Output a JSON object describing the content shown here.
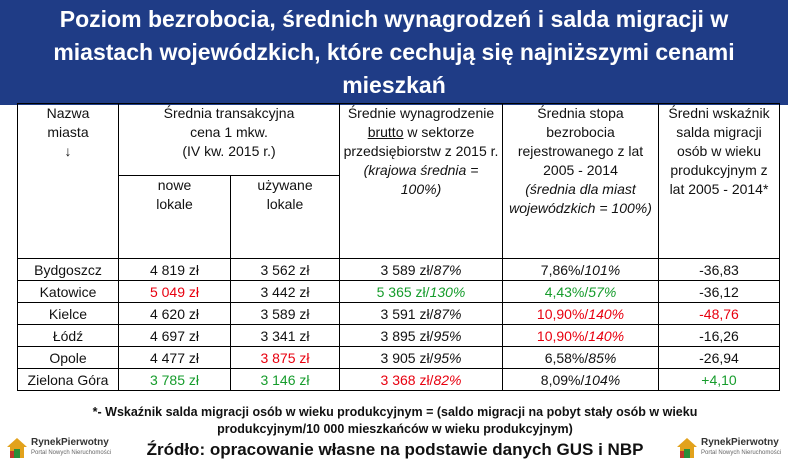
{
  "title": "Poziom bezrobocia, średnich wynagrodzeń i salda migracji w miastach wojewódzkich, które cechują się najniższymi cenami mieszkań",
  "headers": {
    "city": [
      "Nazwa",
      "miasta",
      "↓"
    ],
    "price_group": [
      "Średnia transakcyjna",
      "cena 1 mkw.",
      "(IV kw. 2015 r.)"
    ],
    "new": [
      "nowe",
      "lokale"
    ],
    "used": [
      "używane",
      "lokale"
    ],
    "wage_pre": "Średnie wynagrodzenie",
    "wage_u": "brutto",
    "wage_post": "w sektorze przedsiębiorstw z 2015 r.",
    "wage_note": "(krajowa średnia = 100%)",
    "unemp": "Średnia stopa bezrobocia rejestrowanego z lat 2005 - 2014",
    "unemp_note": "(średnia dla miast wojewódzkich = 100%)",
    "migr": "Średni wskaźnik salda migracji osób w wieku produkcyjnym z lat 2005 - 2014*"
  },
  "rows": [
    {
      "city": "Bydgoszcz",
      "new": "4 819 zł",
      "used": "3 562 zł",
      "wage": "3 589 zł/",
      "wage_pct": "87%",
      "unemp": "7,86%/",
      "unemp_pct": "101%",
      "migr": "-36,83"
    },
    {
      "city": "Katowice",
      "new": "5 049 zł",
      "used": "3 442 zł",
      "wage": "5 365 zł/",
      "wage_pct": "130%",
      "unemp": "4,43%/",
      "unemp_pct": "57%",
      "migr": "-36,12"
    },
    {
      "city": "Kielce",
      "new": "4 620 zł",
      "used": "3 589 zł",
      "wage": "3 591 zł/",
      "wage_pct": "87%",
      "unemp": "10,90%/",
      "unemp_pct": "140%",
      "migr": "-48,76"
    },
    {
      "city": "Łódź",
      "new": "4 697 zł",
      "used": "3 341 zł",
      "wage": "3 895 zł/",
      "wage_pct": "95%",
      "unemp": "10,90%/",
      "unemp_pct": "140%",
      "migr": "-16,26"
    },
    {
      "city": "Opole",
      "new": "4 477 zł",
      "used": "3 875 zł",
      "wage": "3 905 zł/",
      "wage_pct": "95%",
      "unemp": "6,58%/",
      "unemp_pct": "85%",
      "migr": "-26,94"
    },
    {
      "city": "Zielona Góra",
      "new": "3 785 zł",
      "used": "3 146 zł",
      "wage": "3 368 zł/",
      "wage_pct": "82%",
      "unemp": "8,09%/",
      "unemp_pct": "104%",
      "migr": "+4,10"
    }
  ],
  "footnote_line1": "*- Wskaźnik salda migracji osób w wieku produkcyjnym = (saldo migracji na pobyt stały osób w wieku",
  "footnote_line2": "produkcyjnym/10 000 mieszkańców w wieku produkcyjnym)",
  "source": "Źródło: opracowanie własne na podstawie danych GUS i NBP",
  "logo": {
    "brand": "RynekPierwotny",
    "sub": "Portal Nowych Nieruchomości"
  },
  "colors": {
    "title_bg": "#1f3c86",
    "red": "#e8000f",
    "green": "#169c2c"
  }
}
